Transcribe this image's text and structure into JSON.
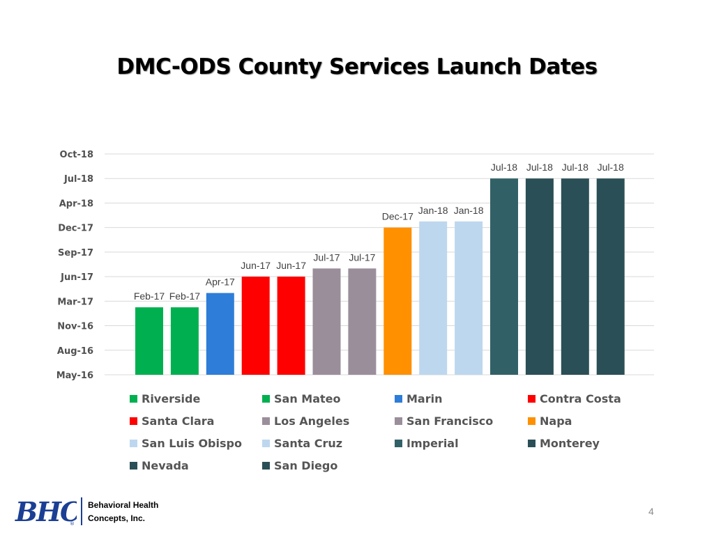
{
  "slide": {
    "title": "DMC-ODS County Services Launch Dates",
    "page_number": "4"
  },
  "footer": {
    "logo_text": "BHC",
    "company_line1": "Behavioral Health",
    "company_line2": "Concepts, Inc.",
    "logo_color": "#1b3f94"
  },
  "chart_data": {
    "type": "bar",
    "title": "DMC-ODS County Services Launch Dates",
    "xlabel": "",
    "ylabel": "",
    "y_axis_type": "date",
    "y_ticks": [
      "May-16",
      "Aug-16",
      "Nov-16",
      "Mar-17",
      "Jun-17",
      "Sep-17",
      "Dec-17",
      "Apr-18",
      "Jul-18",
      "Oct-18"
    ],
    "ylim": [
      "May-16",
      "Oct-18"
    ],
    "grid": true,
    "legend_position": "bottom",
    "categories": [
      "Riverside",
      "San Mateo",
      "Marin",
      "Contra Costa",
      "Santa Clara",
      "Los Angeles",
      "San Francisco",
      "Napa",
      "San Luis Obispo",
      "Santa Cruz",
      "Imperial",
      "Monterey",
      "Nevada",
      "San Diego"
    ],
    "values": [
      "Feb-17",
      "Feb-17",
      "Apr-17",
      "Jun-17",
      "Jun-17",
      "Jul-17",
      "Jul-17",
      "Dec-17",
      "Jan-18",
      "Jan-18",
      "Jul-18",
      "Jul-18",
      "Jul-18",
      "Jul-18"
    ],
    "data_labels": [
      "Feb-17",
      "Feb-17",
      "Apr-17",
      "Jun-17",
      "Jun-17",
      "Jul-17",
      "Jul-17",
      "Dec-17",
      "Jan-18",
      "Jan-18",
      "Jul-18",
      "Jul-18",
      "Jul-18",
      "Jul-18"
    ],
    "colors": [
      "#00b050",
      "#00b050",
      "#2e7dd8",
      "#ff0000",
      "#ff0000",
      "#9b8e9b",
      "#9b8e9b",
      "#ff9000",
      "#bdd7ee",
      "#bdd7ee",
      "#316166",
      "#2b4f56",
      "#2b4f56",
      "#2b4f56"
    ],
    "legend": [
      {
        "label": "Riverside",
        "color": "#00b050"
      },
      {
        "label": "San Mateo",
        "color": "#00b050"
      },
      {
        "label": "Marin",
        "color": "#2e7dd8"
      },
      {
        "label": "Contra Costa",
        "color": "#ff0000"
      },
      {
        "label": "Santa Clara",
        "color": "#ff0000"
      },
      {
        "label": "Los Angeles",
        "color": "#9b8e9b"
      },
      {
        "label": "San Francisco",
        "color": "#9b8e9b"
      },
      {
        "label": "Napa",
        "color": "#ff9000"
      },
      {
        "label": "San Luis Obispo",
        "color": "#bdd7ee"
      },
      {
        "label": "Santa Cruz",
        "color": "#bdd7ee"
      },
      {
        "label": "Imperial",
        "color": "#316166"
      },
      {
        "label": "Monterey",
        "color": "#2b4f56"
      },
      {
        "label": "Nevada",
        "color": "#2b4f56"
      },
      {
        "label": "San Diego",
        "color": "#2b4f56"
      }
    ]
  }
}
